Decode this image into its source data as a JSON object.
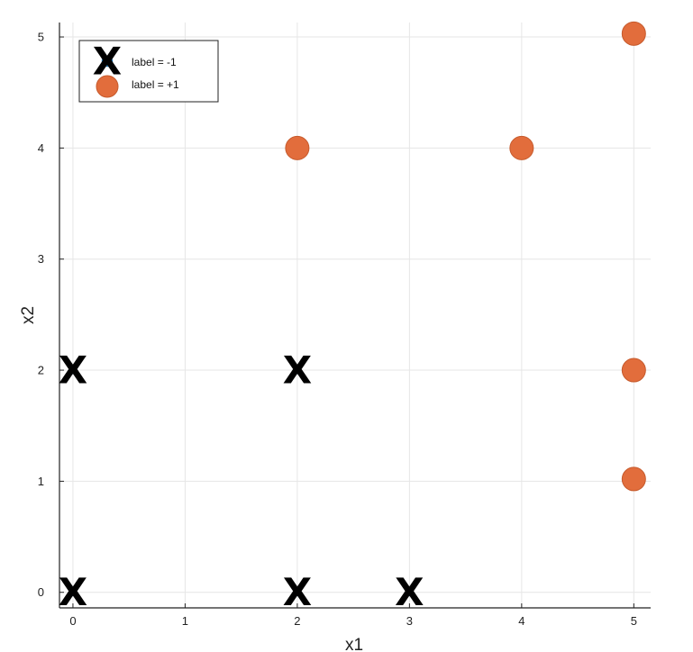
{
  "chart_data": {
    "type": "scatter",
    "title": "",
    "xlabel": "x1",
    "ylabel": "x2",
    "xlim": [
      -0.12,
      5.15
    ],
    "ylim": [
      -0.14,
      5.13
    ],
    "xticks": [
      0,
      1,
      2,
      3,
      4,
      5
    ],
    "yticks": [
      0,
      1,
      2,
      3,
      4,
      5
    ],
    "grid": true,
    "legend_position": "top-left",
    "series": [
      {
        "name": "label = -1",
        "color": "#1f77b4",
        "marker": "dot-with-x-overlay",
        "x": [
          0,
          0,
          2,
          2,
          3
        ],
        "y": [
          2,
          0,
          2,
          0,
          0
        ]
      },
      {
        "name": "label = +1",
        "color": "#e26d3c",
        "marker": "circle",
        "x": [
          2,
          4,
          5,
          5,
          5
        ],
        "y": [
          4,
          4,
          5.03,
          2,
          1.02
        ]
      }
    ],
    "annotations": {
      "overlay_glyph": "X"
    }
  }
}
